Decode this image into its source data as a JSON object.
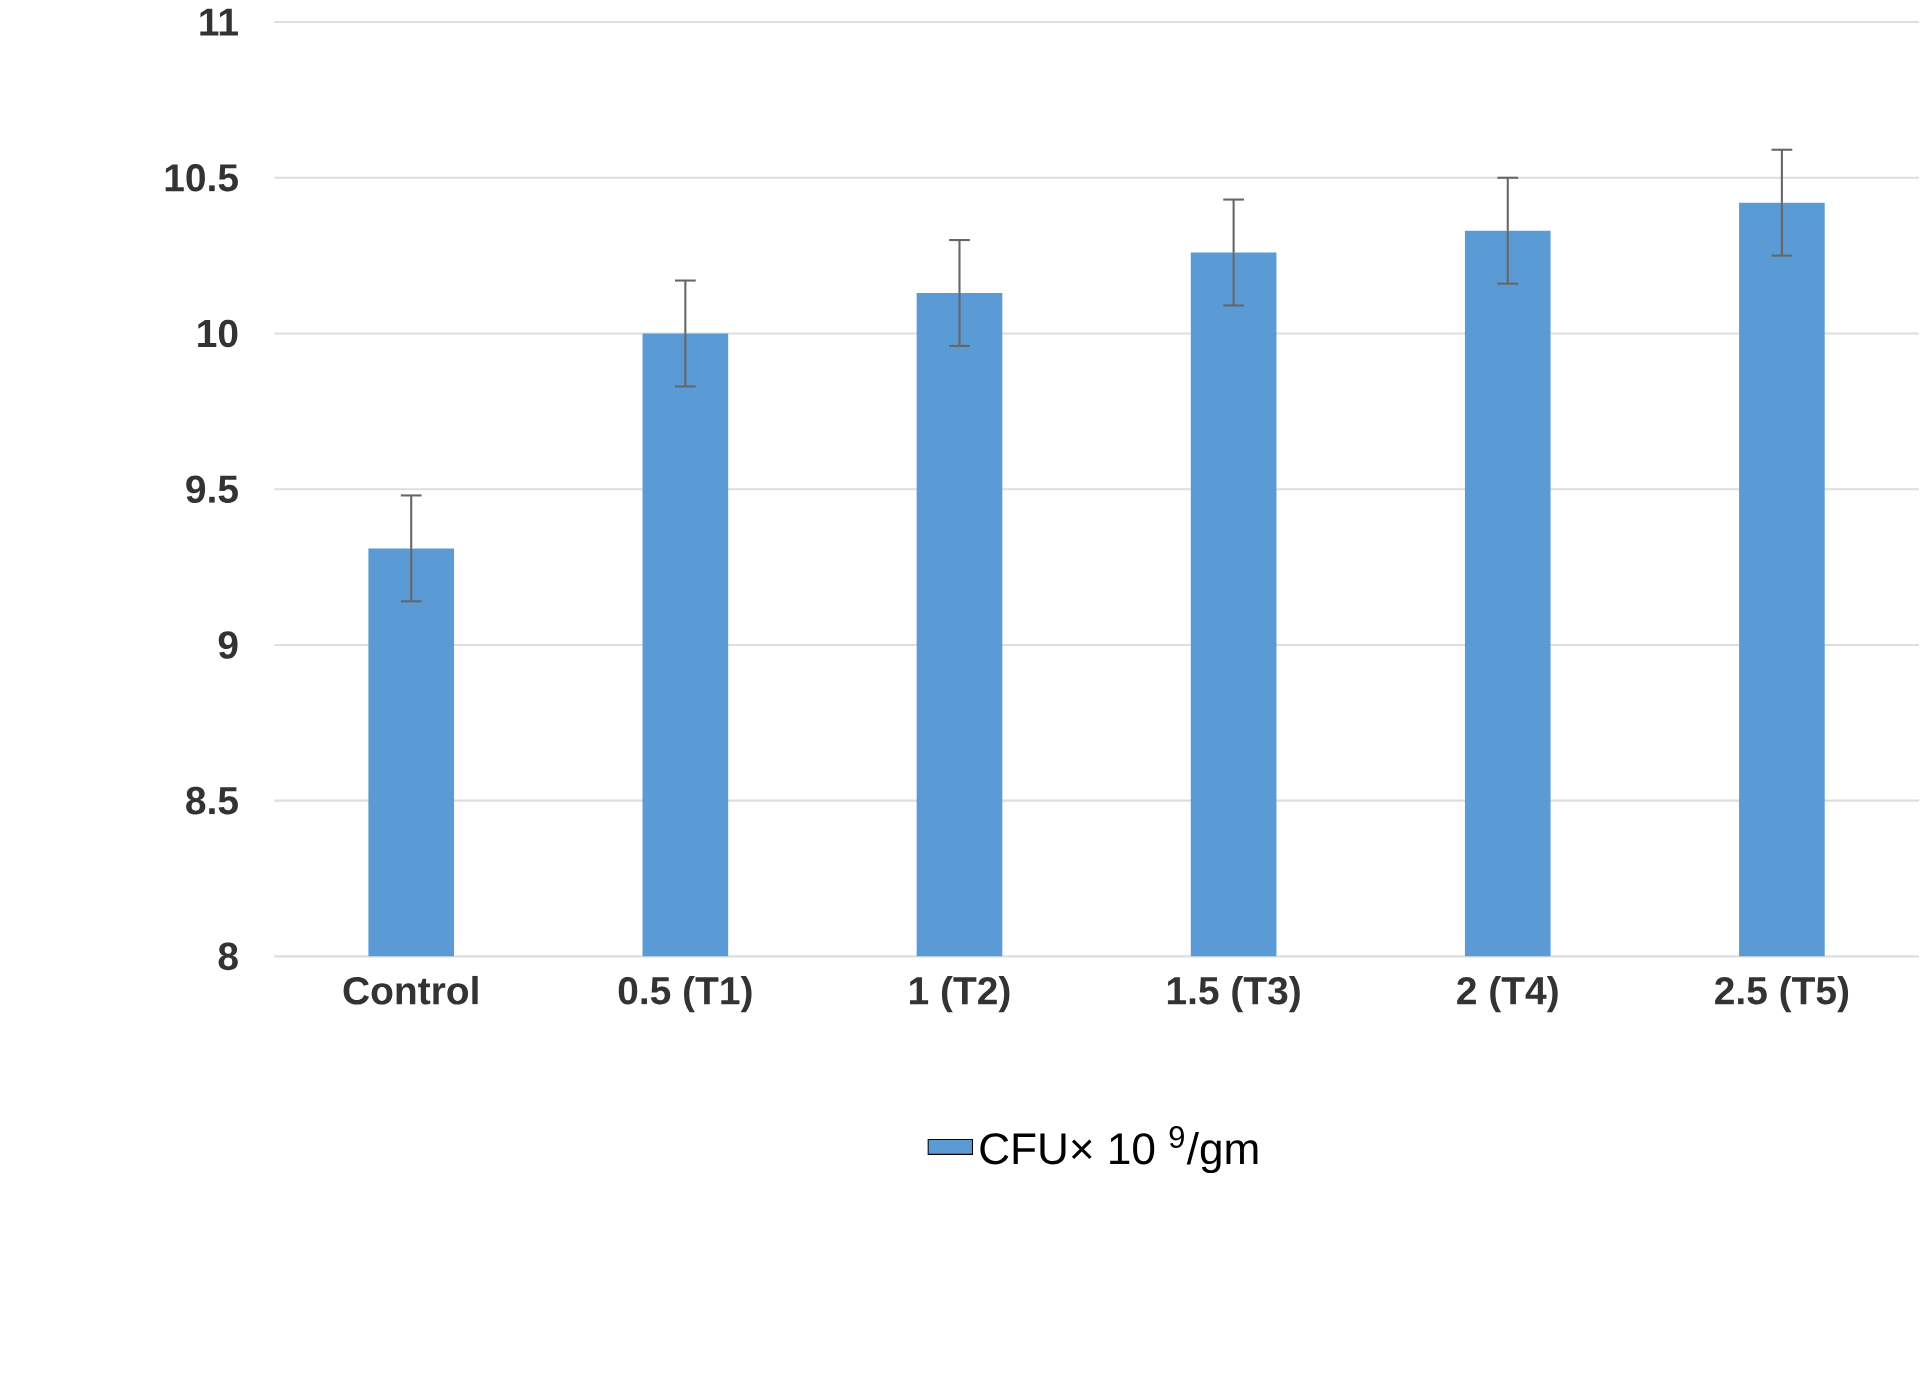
{
  "chart_data": {
    "type": "bar",
    "categories": [
      "Control",
      "0.5 (T1)",
      "1 (T2)",
      "1.5 (T3)",
      "2 (T4)",
      "2.5 (T5)"
    ],
    "series": [
      {
        "name": "CFU× 10 $^{9}$/gm",
        "color": "#5b9bd5",
        "values": [
          9.31,
          10.0,
          10.13,
          10.26,
          10.33,
          10.42
        ],
        "errors": [
          0.17,
          0.17,
          0.17,
          0.17,
          0.17,
          0.17
        ]
      }
    ],
    "ylim": [
      8,
      11
    ],
    "yticks": [
      8,
      8.5,
      9,
      9.5,
      10,
      10.5,
      11
    ],
    "grid": "y",
    "legend": "bottom"
  }
}
